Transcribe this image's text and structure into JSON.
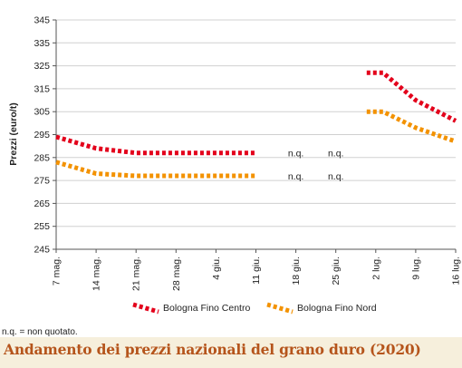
{
  "chart_data": {
    "type": "line",
    "ylabel": "Prezzi (euro/t)",
    "ylim": [
      245,
      345
    ],
    "yticks": [
      245,
      255,
      265,
      275,
      285,
      295,
      305,
      315,
      325,
      335,
      345
    ],
    "categories": [
      "7 mag.",
      "14 mag.",
      "21 mag.",
      "28 mag.",
      "4 giu.",
      "11 giu.",
      "18 giu.",
      "25 giu.",
      "2 lug.",
      "9 lug.",
      "16 lug."
    ],
    "series": [
      {
        "name": "Bologna Fino Centro",
        "color": "#e3001b",
        "values": [
          294,
          289,
          287,
          287,
          287,
          287,
          null,
          null,
          322,
          310,
          301
        ],
        "not_quoted_labels": [
          "n.q.",
          "n.q."
        ]
      },
      {
        "name": "Bologna Fino Nord",
        "color": "#f39200",
        "values": [
          283,
          278,
          277,
          277,
          277,
          277,
          null,
          null,
          305,
          298,
          292
        ],
        "not_quoted_labels": [
          "n.q.",
          "n.q."
        ]
      }
    ],
    "legend_position": "bottom",
    "grid": true
  },
  "note": "n.q. = non quotato.",
  "footer_title": "Andamento dei prezzi nazionali del grano duro (2020)"
}
